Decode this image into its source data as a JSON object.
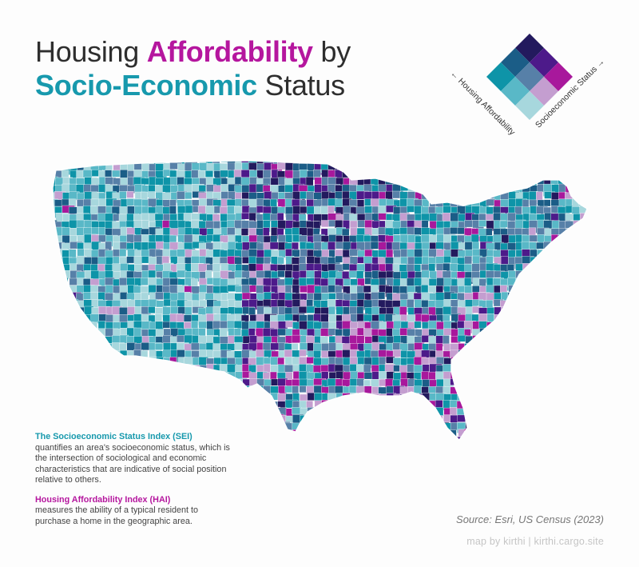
{
  "title": {
    "line1_pre": "Housing ",
    "line1_highlight": "Affordability",
    "line1_post": " by",
    "line2_highlight": "Socio-Economic",
    "line2_post": " Status"
  },
  "legend": {
    "axis_hai": "← Housing Affordability",
    "axis_sei": "Socioeconomic Status →",
    "colors": [
      "#a7d7dd",
      "#59b8c7",
      "#0e94a8",
      "#c49ed0",
      "#5780a8",
      "#1b5d87",
      "#a8189c",
      "#4d1a8a",
      "#231a5e"
    ]
  },
  "notes": {
    "sei_title": "The Socioeconomic Status Index (SEI)",
    "sei_text": "quantifies an area's socioeconomic status, which is the intersection of sociological and economic characteristics that are indicative of social position relative to others.",
    "hai_title": "Housing Affordability Index (HAI)",
    "hai_text": "measures the ability of a typical resident to purchase a home in the geographic area."
  },
  "source": "Source: Esri, US Census (2023)",
  "credit": "map by kirthi | kirthi.cargo.site"
}
